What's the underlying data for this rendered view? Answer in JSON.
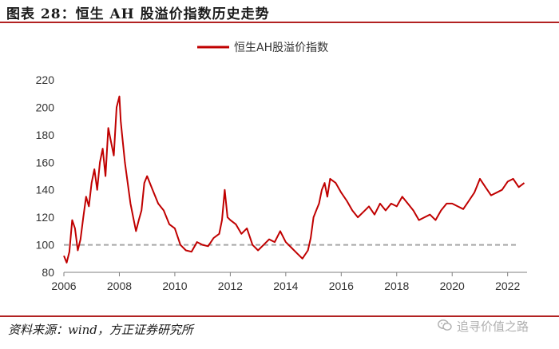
{
  "figure_title": "图表 28：恒生 AH 股溢价指数历史走势",
  "source": "资料来源：wind，方正证券研究所",
  "watermark": {
    "text": "追寻价值之路",
    "icon": "wechat-icon"
  },
  "colors": {
    "series": "#c00000",
    "baseline": "#a6a6a6",
    "rule": "#b22222"
  },
  "chart_data": {
    "type": "line",
    "title": "",
    "xlabel": "",
    "ylabel": "",
    "xlim": [
      2006,
      2022.7
    ],
    "ylim": [
      80,
      220
    ],
    "x_ticks": [
      2006,
      2008,
      2010,
      2012,
      2014,
      2016,
      2018,
      2020,
      2022
    ],
    "y_ticks": [
      80,
      100,
      120,
      140,
      160,
      180,
      200,
      220
    ],
    "grid": false,
    "legend": "top-center",
    "reference_line": {
      "y": 100,
      "style": "dashed"
    },
    "series": [
      {
        "name": "恒生AH股溢价指数",
        "x": [
          2006.0,
          2006.1,
          2006.2,
          2006.3,
          2006.4,
          2006.5,
          2006.6,
          2006.7,
          2006.8,
          2006.9,
          2007.0,
          2007.1,
          2007.2,
          2007.3,
          2007.4,
          2007.5,
          2007.6,
          2007.7,
          2007.8,
          2007.9,
          2008.0,
          2008.05,
          2008.1,
          2008.2,
          2008.3,
          2008.4,
          2008.5,
          2008.6,
          2008.7,
          2008.8,
          2008.9,
          2009.0,
          2009.2,
          2009.4,
          2009.6,
          2009.8,
          2010.0,
          2010.2,
          2010.4,
          2010.6,
          2010.8,
          2011.0,
          2011.2,
          2011.4,
          2011.6,
          2011.7,
          2011.8,
          2011.9,
          2012.0,
          2012.2,
          2012.4,
          2012.6,
          2012.8,
          2013.0,
          2013.2,
          2013.4,
          2013.6,
          2013.8,
          2014.0,
          2014.2,
          2014.4,
          2014.6,
          2014.8,
          2014.9,
          2015.0,
          2015.1,
          2015.2,
          2015.3,
          2015.4,
          2015.5,
          2015.6,
          2015.8,
          2016.0,
          2016.2,
          2016.4,
          2016.6,
          2016.8,
          2017.0,
          2017.2,
          2017.4,
          2017.6,
          2017.8,
          2018.0,
          2018.2,
          2018.4,
          2018.6,
          2018.8,
          2019.0,
          2019.2,
          2019.4,
          2019.6,
          2019.8,
          2020.0,
          2020.2,
          2020.4,
          2020.6,
          2020.8,
          2021.0,
          2021.2,
          2021.4,
          2021.6,
          2021.8,
          2022.0,
          2022.2,
          2022.4,
          2022.6
        ],
        "y": [
          92,
          87,
          95,
          118,
          112,
          96,
          104,
          120,
          135,
          128,
          145,
          155,
          140,
          160,
          170,
          150,
          185,
          175,
          165,
          200,
          208,
          190,
          180,
          160,
          145,
          130,
          120,
          110,
          118,
          125,
          145,
          150,
          140,
          130,
          125,
          115,
          112,
          100,
          96,
          95,
          102,
          100,
          99,
          105,
          108,
          118,
          140,
          120,
          118,
          115,
          108,
          112,
          100,
          96,
          100,
          104,
          102,
          110,
          102,
          98,
          94,
          90,
          96,
          105,
          120,
          125,
          130,
          140,
          145,
          135,
          148,
          145,
          138,
          132,
          125,
          120,
          124,
          128,
          122,
          130,
          125,
          130,
          128,
          135,
          130,
          125,
          118,
          120,
          122,
          118,
          125,
          130,
          130,
          128,
          126,
          132,
          138,
          148,
          142,
          136,
          138,
          140,
          146,
          148,
          142,
          145
        ]
      }
    ]
  }
}
